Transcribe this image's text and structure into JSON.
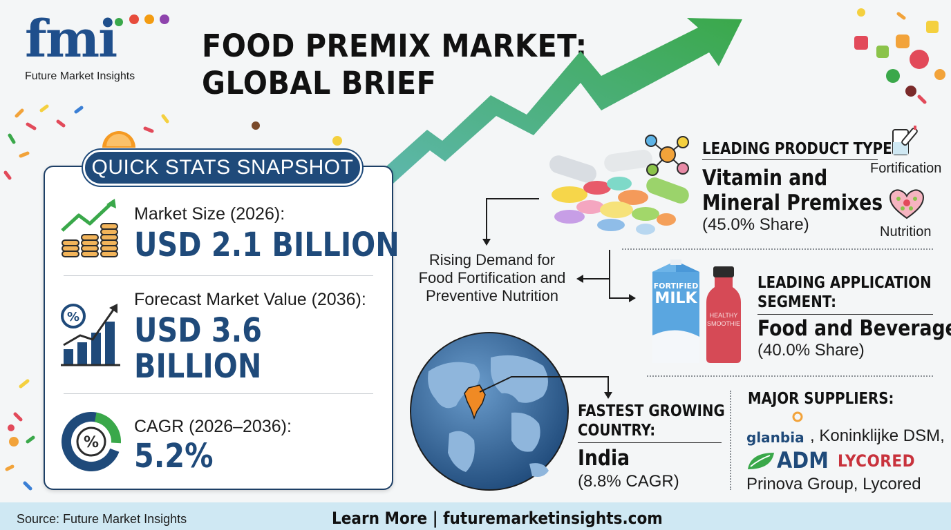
{
  "brand": {
    "logo_text": "fmi",
    "tagline": "Future Market Insights"
  },
  "title": {
    "line1": "FOOD  PREMIX MARKET:",
    "line2": "GLOBAL BRIEF"
  },
  "quick_stats": {
    "header": "QUICK STATS SNAPSHOT",
    "items": [
      {
        "label": "Market Size (2026):",
        "value": "USD 2.1 BILLION",
        "icon": "coins-growth-icon"
      },
      {
        "label": "Forecast Market Value (2036):",
        "value_line1": "USD 3.6",
        "value_line2": "BILLION",
        "icon": "percent-bar-chart-icon"
      },
      {
        "label": "CAGR (2026–2036):",
        "value": "5.2%",
        "icon": "percent-donut-icon"
      }
    ]
  },
  "product_type": {
    "heading": "LEADING PRODUCT TYPE:",
    "value_line1": "Vitamin and",
    "value_line2": "Mineral Premixes",
    "share": "(45.0% Share)",
    "icon_labels": [
      "Fortification",
      "Nutrition"
    ]
  },
  "driver": {
    "line1": "Rising Demand for",
    "line2": "Food Fortification and",
    "line3": "Preventive Nutrition"
  },
  "application": {
    "heading_line1": "LEADING APPLICATION",
    "heading_line2": "SEGMENT:",
    "value": "Food and Beverages",
    "share": "(40.0% Share)",
    "carton_text_1": "FORTIFIED",
    "carton_text_2": "MILK",
    "bottle_text_1": "HEALTHY",
    "bottle_text_2": "SMOOTHIE"
  },
  "country": {
    "heading_line1": "FASTEST GROWING",
    "heading_line2": "COUNTRY:",
    "value": "India",
    "cagr": "(8.8% CAGR)"
  },
  "suppliers": {
    "heading": "MAJOR SUPPLIERS:",
    "logo_glanbia": "glanbia",
    "sep1": ", Koninklijke DSM,",
    "logo_adm": "ADM",
    "logo_lycored": "LYCORED",
    "line3": "Prinova Group, Lycored"
  },
  "footer": {
    "source": "Source: Future Market Insights",
    "cta": "Learn More | futuremarketinsights.com"
  },
  "colors": {
    "navy": "#1f4a7a",
    "green": "#3aa84a",
    "footer_bg": "#cfe8f3",
    "india_orange": "#f08a24"
  }
}
